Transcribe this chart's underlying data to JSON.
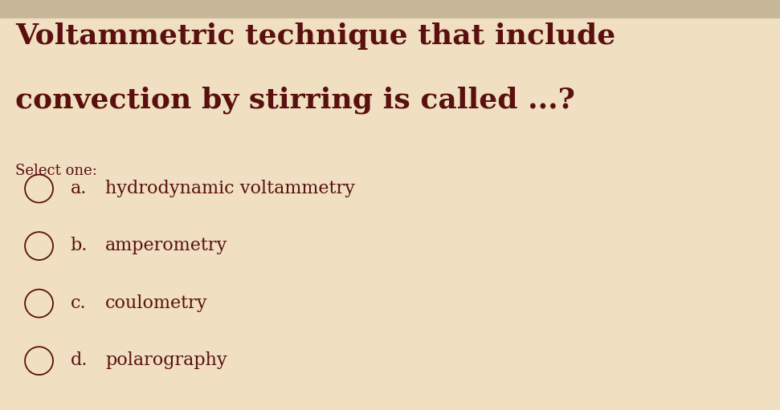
{
  "title_line1": "Voltammetric technique that include",
  "title_line2": "convection by stirring is called ...?",
  "select_one_label": "Select one:",
  "options": [
    {
      "letter": "a.",
      "text": "hydrodynamic voltammetry"
    },
    {
      "letter": "b.",
      "text": "amperometry"
    },
    {
      "letter": "c.",
      "text": "coulometry"
    },
    {
      "letter": "d.",
      "text": "polarography"
    }
  ],
  "background_color": "#f0dfc0",
  "top_bar_color": "#c8b89a",
  "text_color": "#5a1010",
  "title_fontsize": 26,
  "select_fontsize": 13,
  "option_fontsize": 16,
  "figsize": [
    9.71,
    5.11
  ],
  "dpi": 100
}
